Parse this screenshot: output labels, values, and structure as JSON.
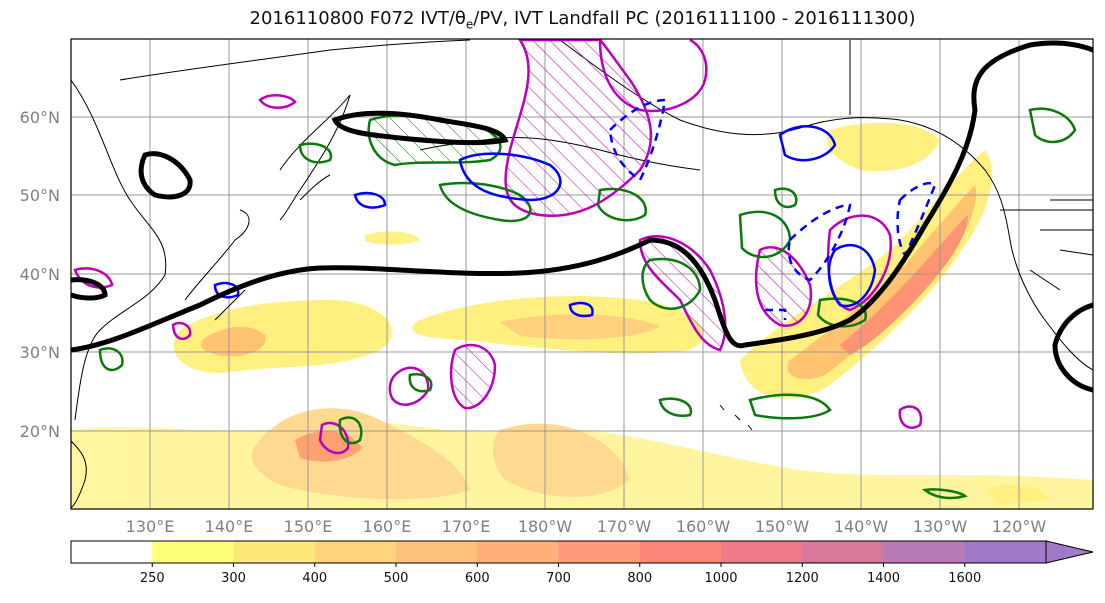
{
  "title": {
    "prefix": "2016110800 F072 IVT/θ",
    "subscript": "e",
    "suffix": "/PV, IVT Landfall PC (2016111100 - 2016111300)"
  },
  "map": {
    "lat_labels": [
      "60°N",
      "50°N",
      "40°N",
      "30°N",
      "20°N"
    ],
    "lon_labels": [
      "130°E",
      "140°E",
      "150°E",
      "160°E",
      "170°E",
      "180°W",
      "170°W",
      "160°W",
      "150°W",
      "140°W",
      "130°W",
      "120°W"
    ],
    "colors": {
      "ivt_low": "#fff36b",
      "ivt_mid": "#ffc266",
      "ivt_high": "#ff8a6b",
      "jet": "#000000",
      "theta_e": "#0a7a0a",
      "pv": "#bb00bb",
      "blue_contour": "#0000ff",
      "coast": "#000000",
      "grid": "#999999"
    }
  },
  "colorbar": {
    "ticks": [
      "250",
      "300",
      "400",
      "500",
      "600",
      "700",
      "800",
      "1000",
      "1200",
      "1400",
      "1600"
    ],
    "colors": [
      "#ffffff",
      "#ffff7a",
      "#ffe87a",
      "#ffd47a",
      "#ffc27a",
      "#ffb07a",
      "#ff9a7a",
      "#ff867a",
      "#f07a8a",
      "#d8789a",
      "#b87ab8",
      "#a07ac8"
    ]
  }
}
